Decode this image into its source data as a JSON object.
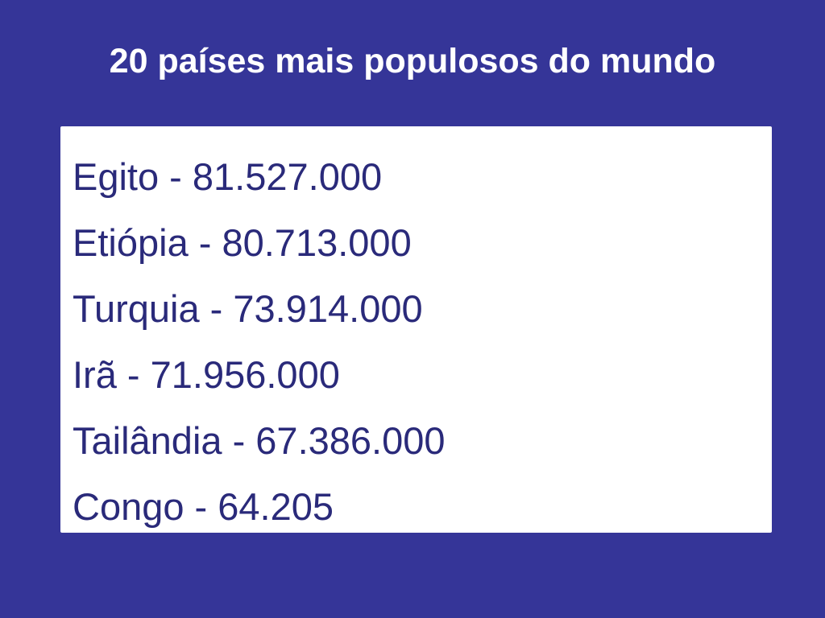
{
  "slide": {
    "title": "20 países mais populosos do mundo",
    "items": [
      "Egito - 81.527.000",
      "Etiópia - 80.713.000",
      "Turquia - 73.914.000",
      "Irã - 71.956.000",
      "Tailândia - 67.386.000",
      "Congo - 64.205"
    ]
  },
  "colors": {
    "background": "#353598",
    "title": "#ffffff",
    "panel": "#ffffff",
    "list_text": "#2a2a7a"
  }
}
